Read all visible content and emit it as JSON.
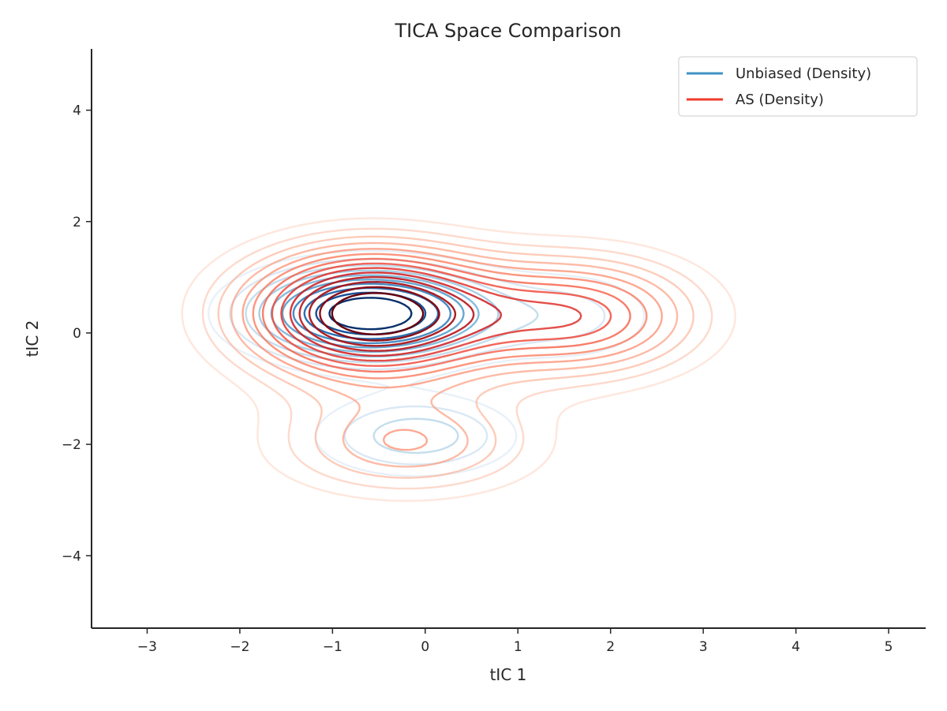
{
  "chart_data": {
    "type": "contour",
    "title": "TICA Space Comparison",
    "xlabel": "tIC 1",
    "ylabel": "tIC 2",
    "xlim": [
      -3.6,
      5.4
    ],
    "ylim": [
      -5.3,
      5.1
    ],
    "xticks": [
      -3,
      -2,
      -1,
      0,
      1,
      2,
      3,
      4,
      5
    ],
    "yticks": [
      -4,
      -2,
      0,
      2,
      4
    ],
    "xtick_labels": [
      "−3",
      "−2",
      "−1",
      "0",
      "1",
      "2",
      "3",
      "4",
      "5"
    ],
    "ytick_labels": [
      "−4",
      "−2",
      "0",
      "2",
      "4"
    ],
    "grid": false,
    "legend": {
      "placement": "top-right"
    },
    "series": [
      {
        "name": "Unbiased (Density)",
        "color": "#4292c6",
        "colormap": "Blues",
        "peaks": [
          {
            "x": -0.6,
            "y": 0.35,
            "sx": 0.85,
            "sy": 0.55,
            "w": 1.0
          },
          {
            "x": -0.1,
            "y": -1.85,
            "sx": 0.75,
            "sy": 0.5,
            "w": 0.35
          },
          {
            "x": 1.6,
            "y": 0.3,
            "sx": 0.7,
            "sy": 0.6,
            "w": 0.22
          }
        ]
      },
      {
        "name": "AS (Density)",
        "color": "#ef3b2c",
        "colormap": "Reds",
        "peaks": [
          {
            "x": -0.6,
            "y": 0.35,
            "sx": 0.95,
            "sy": 0.8,
            "w": 1.0
          },
          {
            "x": 1.7,
            "y": 0.3,
            "sx": 0.9,
            "sy": 0.75,
            "w": 0.55
          },
          {
            "x": -0.2,
            "y": -2.0,
            "sx": 1.0,
            "sy": 0.65,
            "w": 0.35
          }
        ]
      }
    ]
  }
}
